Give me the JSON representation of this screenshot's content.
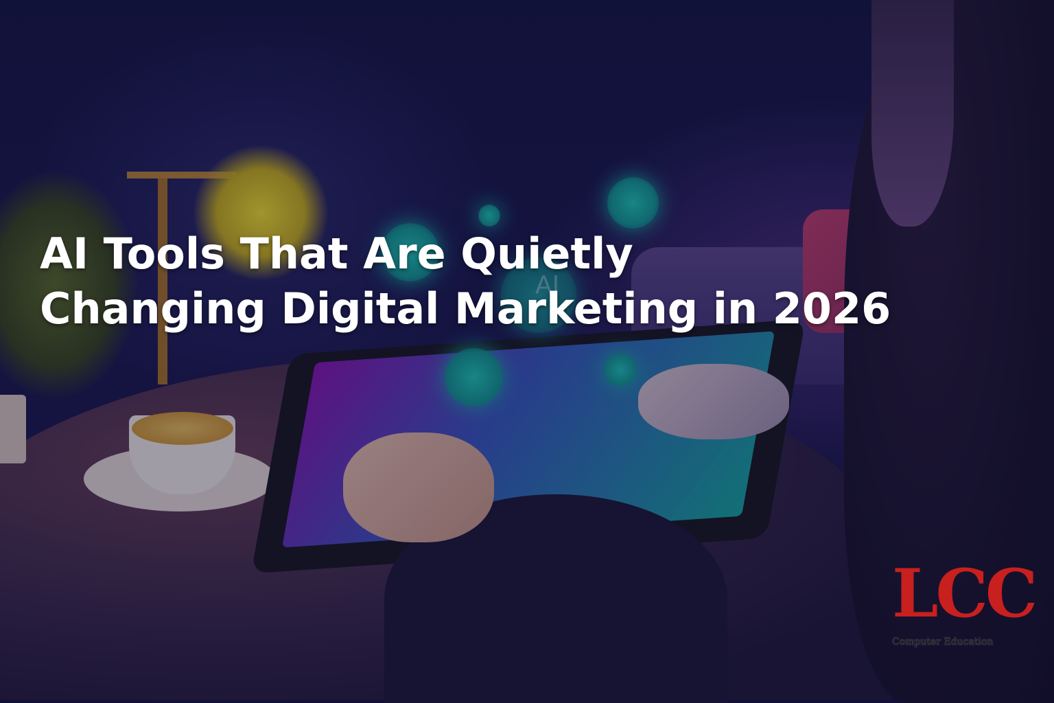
{
  "hero": {
    "title_line1": "AI Tools That Are Quietly",
    "title_line2": "Changing Digital Marketing in 2026",
    "floating_label": "AI"
  },
  "logo": {
    "letters": "LCC",
    "subtitle": "Computer Education",
    "color": "#c8201e"
  },
  "colors": {
    "background": "#1d1b50",
    "accent_teal": "#18b0a8",
    "title": "#ffffff"
  }
}
